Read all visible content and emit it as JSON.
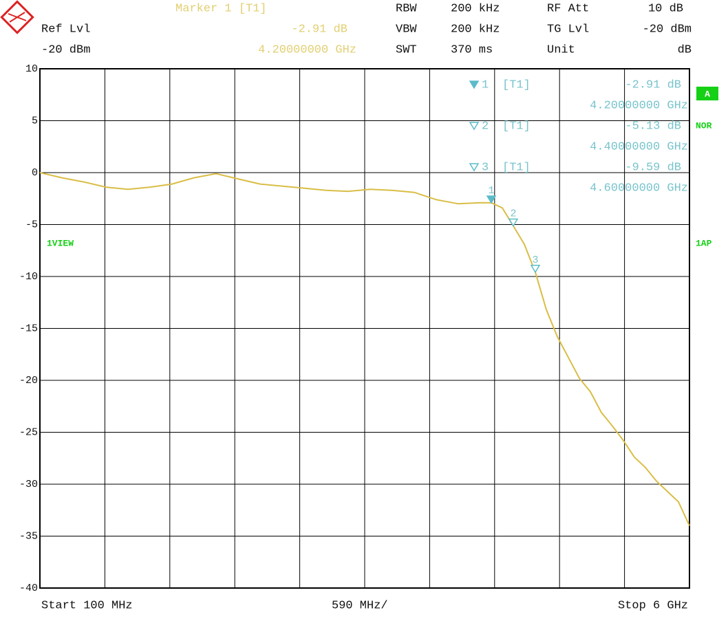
{
  "header": {
    "marker_title": "Marker 1 [T1]",
    "ref_lvl_label": "Ref Lvl",
    "ref_lvl": "-20 dBm",
    "rbw_label": "RBW",
    "rbw": "200 kHz",
    "vbw_label": "VBW",
    "vbw": "200 kHz",
    "swt_label": "SWT",
    "swt": "370 ms",
    "rf_att_label": "RF Att",
    "rf_att": "10 dB",
    "tg_lvl_label": "TG Lvl",
    "tg_lvl": "-20 dBm",
    "unit_label": "Unit",
    "unit": "dB"
  },
  "side": {
    "trace_mode": "A",
    "detector": "NOR",
    "view": "1VIEW",
    "ap": "1AP"
  },
  "footer": {
    "start": "Start 100 MHz",
    "span_div": "590 MHz/",
    "stop": "Stop 6 GHz"
  },
  "chart_data": {
    "type": "line",
    "grid": true,
    "xlim": [
      0.1,
      6
    ],
    "xticks": [
      0.1,
      0.69,
      1.28,
      1.87,
      2.46,
      3.05,
      3.64,
      4.23,
      4.82,
      5.41,
      6
    ],
    "ylim": [
      -40,
      10
    ],
    "yticks": [
      10,
      5,
      0,
      -5,
      -10,
      -15,
      -20,
      -25,
      -30,
      -35,
      -40
    ],
    "x": [
      0.1,
      0.3,
      0.5,
      0.7,
      0.9,
      1.1,
      1.3,
      1.5,
      1.7,
      1.9,
      2.1,
      2.3,
      2.5,
      2.7,
      2.9,
      3.1,
      3.3,
      3.5,
      3.7,
      3.9,
      4.1,
      4.2,
      4.3,
      4.4,
      4.5,
      4.6,
      4.7,
      4.8,
      4.9,
      5.0,
      5.1,
      5.2,
      5.3,
      5.4,
      5.5,
      5.6,
      5.7,
      5.8,
      5.9,
      6.0
    ],
    "series": [
      {
        "color": "#d9bd45",
        "values": [
          0,
          -0.5,
          -0.9,
          -1.4,
          -1.6,
          -1.4,
          -1.1,
          -0.5,
          -0.1,
          -0.6,
          -1.1,
          -1.3,
          -1.5,
          -1.7,
          -1.8,
          -1.6,
          -1.7,
          -1.9,
          -2.6,
          -3.0,
          -2.9,
          -2.91,
          -3.4,
          -5.13,
          -6.9,
          -9.59,
          -13.2,
          -15.8,
          -17.8,
          -19.8,
          -21.1,
          -23.1,
          -24.4,
          -25.8,
          -27.4,
          -28.4,
          -29.7,
          -30.7,
          -31.7,
          -34.0
        ]
      }
    ],
    "markers": {
      "color": "#5bbcc8",
      "names": [
        "1",
        "2",
        "3"
      ],
      "trace": "[T1]",
      "x": [
        4.2,
        4.4,
        4.6
      ],
      "x_labels": [
        "4.20000000 GHz",
        "4.40000000 GHz",
        "4.60000000 GHz"
      ],
      "values": [
        -2.91,
        -5.13,
        -9.59
      ],
      "value_labels": [
        "-2.91 dB",
        "-5.13 dB",
        "-9.59 dB"
      ]
    }
  }
}
